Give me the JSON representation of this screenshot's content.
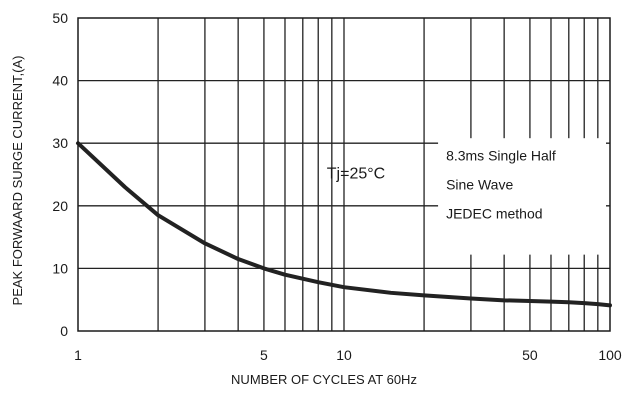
{
  "chart_data": {
    "type": "line",
    "xscale": "log",
    "xlim": [
      1,
      100
    ],
    "ylim": [
      0,
      50
    ],
    "grid": true,
    "xlabel": "NUMBER OF CYCLES AT 60Hz",
    "ylabel": "PEAK FORWAARD SURGE CURRENT,(A)",
    "x_ticks": [
      {
        "value": 1,
        "label": "1"
      },
      {
        "value": 5,
        "label": "5"
      },
      {
        "value": 10,
        "label": "10"
      },
      {
        "value": 50,
        "label": "50"
      },
      {
        "value": 100,
        "label": "100"
      }
    ],
    "y_ticks": [
      {
        "value": 0,
        "label": "0"
      },
      {
        "value": 10,
        "label": "10"
      },
      {
        "value": 20,
        "label": "20"
      },
      {
        "value": 30,
        "label": "30"
      },
      {
        "value": 40,
        "label": "40"
      },
      {
        "value": 50,
        "label": "50"
      }
    ],
    "x_gridlines": [
      2,
      3,
      4,
      5,
      6,
      7,
      8,
      9,
      10,
      20,
      30,
      40,
      50,
      60,
      70,
      80,
      90
    ],
    "series": [
      {
        "x": [
          1,
          1.5,
          2,
          3,
          4,
          5,
          6,
          8,
          10,
          15,
          20,
          30,
          40,
          50,
          60,
          70,
          80,
          90,
          100
        ],
        "y": [
          30,
          23,
          18.5,
          14,
          11.5,
          10,
          9,
          7.8,
          7,
          6.1,
          5.7,
          5.2,
          4.9,
          4.8,
          4.7,
          4.6,
          4.45,
          4.3,
          4.1
        ]
      }
    ],
    "annotations": {
      "temperature": "Tj=25°C",
      "note_line1": "8.3ms Single Half",
      "note_line2": "Sine Wave",
      "note_line3": "JEDEC method"
    }
  }
}
